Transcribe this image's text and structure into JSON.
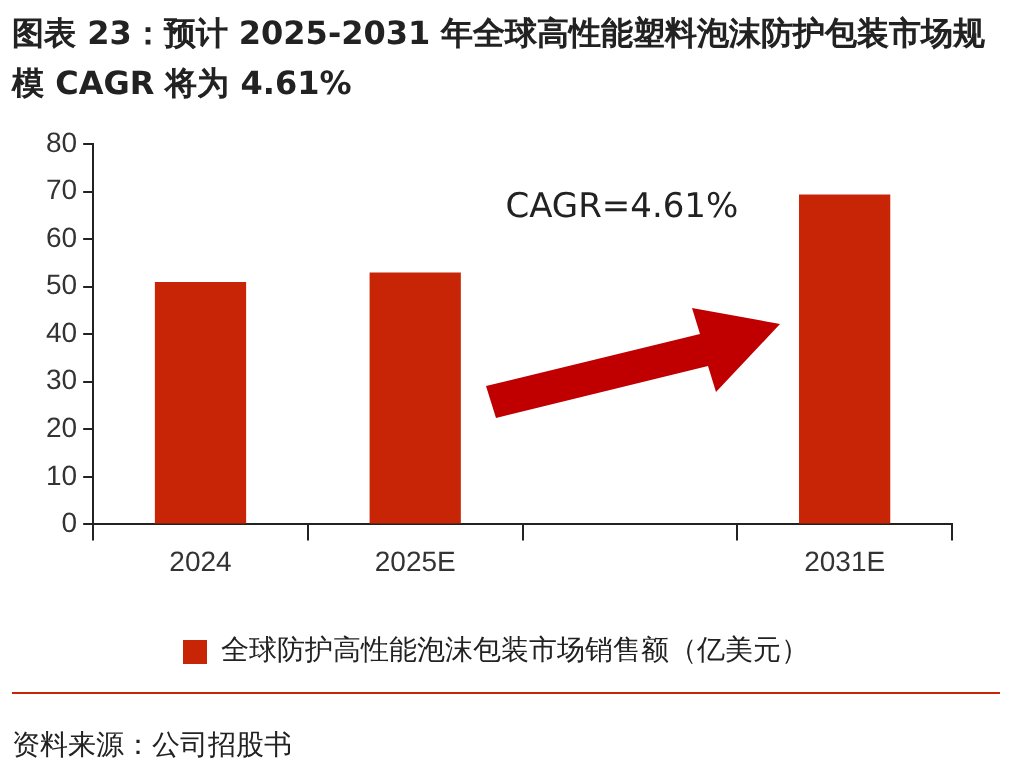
{
  "chart_data": {
    "type": "bar",
    "title": "图表 23：预计 2025-2031 年全球高性能塑料泡沫防护包装市场规模 CAGR 将为 4.61%",
    "categories": [
      "2024",
      "2025E",
      null,
      "2031E"
    ],
    "series": [
      {
        "name": "全球防护高性能泡沫包装市场销售额（亿美元）",
        "color": "#c82506",
        "values": [
          51,
          53,
          null,
          69.4
        ]
      }
    ],
    "ylim": [
      0,
      80
    ],
    "yticks": [
      0,
      10,
      20,
      30,
      40,
      50,
      60,
      70,
      80
    ],
    "grid": false,
    "legend": "bottom",
    "annotations": [
      "CAGR=4.61%",
      "资料来源：公司招股书"
    ]
  }
}
